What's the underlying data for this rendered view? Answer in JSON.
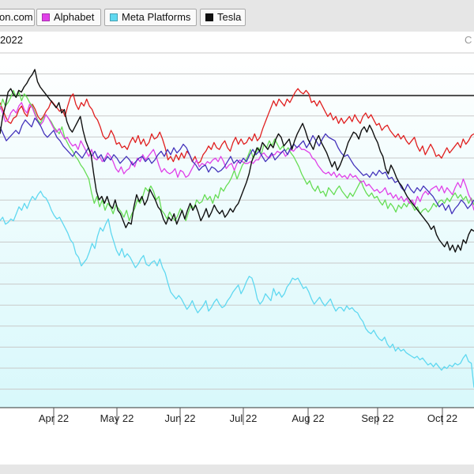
{
  "legend": [
    {
      "key": "amazon",
      "label": "on.com",
      "color": "#e01f1f"
    },
    {
      "key": "alphabet",
      "label": "Alphabet",
      "color": "#e040e8"
    },
    {
      "key": "meta",
      "label": "Meta Platforms",
      "color": "#5fd8f0"
    },
    {
      "key": "tesla",
      "label": "Tesla",
      "color": "#111111"
    }
  ],
  "header": {
    "title_partial": "2022",
    "corner_partial": "C"
  },
  "chart_data": {
    "type": "line",
    "x_ticks": [
      "Apr 22",
      "May 22",
      "Jun 22",
      "Jul 22",
      "Aug 22",
      "Sep 22",
      "Oct 22"
    ],
    "grid": true,
    "colors": {
      "amazon": "#e01f1f",
      "alphabet": "#e040e8",
      "meta": "#5fd8f0",
      "tesla": "#111111",
      "green": "#66dd55",
      "purple": "#4433bb",
      "fill_top": "#ffffff",
      "fill_bottom": "#d8f8fb"
    },
    "series": [
      {
        "name": "on.com",
        "key": "amazon",
        "color": "#e01f1f",
        "values": [
          -4,
          -8,
          -12,
          -15,
          -16,
          -13,
          -12,
          -8,
          -6,
          -10,
          -12,
          -7,
          -5,
          -8,
          -12,
          -14,
          -12,
          -9,
          -7,
          -3,
          -5,
          -7,
          -9,
          -8,
          -12,
          -6,
          -1,
          1,
          -5,
          -8,
          -4,
          -6,
          -2,
          -6,
          -8,
          -12,
          -14,
          -18,
          -23,
          -25,
          -24,
          -20,
          -23,
          -28,
          -27,
          -30,
          -29,
          -31,
          -27,
          -24,
          -27,
          -23,
          -28,
          -25,
          -29,
          -27,
          -22,
          -25,
          -24,
          -21,
          -25,
          -30,
          -37,
          -35,
          -38,
          -34,
          -37,
          -33,
          -36,
          -32,
          -34,
          -38,
          -35,
          -39,
          -38,
          -34,
          -32,
          -29,
          -31,
          -27,
          -30,
          -31,
          -28,
          -26,
          -30,
          -32,
          -27,
          -24,
          -28,
          -25,
          -28,
          -27,
          -24,
          -26,
          -22,
          -26,
          -24,
          -19,
          -15,
          -11,
          -7,
          -3,
          -6,
          -2,
          -4,
          -6,
          -2,
          -4,
          -1,
          2,
          4,
          2,
          1,
          3,
          1,
          -4,
          -3,
          -6,
          -3,
          -6,
          -9,
          -12,
          -10,
          -14,
          -12,
          -16,
          -13,
          -16,
          -14,
          -12,
          -15,
          -11,
          -14,
          -16,
          -12,
          -10,
          -13,
          -11,
          -14,
          -17,
          -16,
          -20,
          -18,
          -17,
          -20,
          -22,
          -24,
          -22,
          -25,
          -23,
          -26,
          -28,
          -26,
          -24,
          -29,
          -32,
          -29,
          -34,
          -31,
          -28,
          -31,
          -35,
          -34,
          -36,
          -33,
          -30,
          -33,
          -31,
          -29,
          -27,
          -30,
          -25,
          -28,
          -26,
          -23,
          -22
        ]
      },
      {
        "name": "Alphabet",
        "key": "alphabet",
        "color": "#e040e8",
        "values": [
          -6,
          -10,
          -15,
          -14,
          -10,
          -8,
          -10,
          -6,
          -4,
          -8,
          -10,
          -5,
          -7,
          -11,
          -15,
          -17,
          -15,
          -11,
          -13,
          -16,
          -19,
          -21,
          -19,
          -22,
          -25,
          -24,
          -27,
          -29,
          -28,
          -31,
          -26,
          -29,
          -32,
          -35,
          -31,
          -36,
          -37,
          -35,
          -38,
          -36,
          -33,
          -35,
          -38,
          -42,
          -44,
          -41,
          -45,
          -43,
          -42,
          -38,
          -41,
          -36,
          -38,
          -34,
          -37,
          -35,
          -33,
          -31,
          -35,
          -40,
          -44,
          -42,
          -44,
          -45,
          -44,
          -42,
          -47,
          -43,
          -44,
          -47,
          -46,
          -43,
          -40,
          -37,
          -41,
          -39,
          -40,
          -38,
          -39,
          -37,
          -36,
          -38,
          -35,
          -38,
          -42,
          -40,
          -39,
          -43,
          -39,
          -37,
          -38,
          -39,
          -39,
          -38,
          -39,
          -37,
          -37,
          -34,
          -33,
          -35,
          -36,
          -34,
          -34,
          -32,
          -33,
          -32,
          -35,
          -33,
          -31,
          -32,
          -30,
          -29,
          -31,
          -31,
          -32,
          -33,
          -36,
          -37,
          -40,
          -42,
          -44,
          -45,
          -44,
          -46,
          -44,
          -47,
          -45,
          -47,
          -46,
          -48,
          -45,
          -47,
          -46,
          -48,
          -50,
          -49,
          -52,
          -51,
          -53,
          -55,
          -54,
          -56,
          -55,
          -53,
          -57,
          -56,
          -59,
          -57,
          -60,
          -58,
          -61,
          -59,
          -62,
          -60,
          -63,
          -58,
          -61,
          -57,
          -55,
          -57,
          -54,
          -53,
          -52,
          -55,
          -52,
          -56,
          -53,
          -55,
          -57,
          -53,
          -50,
          -53,
          -48,
          -52,
          -57,
          -60,
          -66
        ]
      },
      {
        "name": "Meta Platforms",
        "key": "meta",
        "color": "#5fd8f0",
        "values": [
          -72,
          -70,
          -74,
          -73,
          -71,
          -72,
          -68,
          -64,
          -66,
          -62,
          -65,
          -61,
          -58,
          -60,
          -57,
          -55,
          -58,
          -59,
          -62,
          -66,
          -69,
          -71,
          -70,
          -73,
          -76,
          -79,
          -83,
          -85,
          -91,
          -93,
          -98,
          -96,
          -94,
          -90,
          -85,
          -88,
          -81,
          -76,
          -78,
          -74,
          -71,
          -79,
          -84,
          -89,
          -92,
          -88,
          -93,
          -91,
          -93,
          -96,
          -99,
          -97,
          -94,
          -92,
          -97,
          -98,
          -96,
          -95,
          -98,
          -94,
          -99,
          -102,
          -108,
          -113,
          -115,
          -117,
          -115,
          -117,
          -120,
          -123,
          -121,
          -118,
          -122,
          -125,
          -123,
          -121,
          -118,
          -124,
          -122,
          -119,
          -117,
          -120,
          -122,
          -121,
          -118,
          -116,
          -113,
          -111,
          -109,
          -114,
          -111,
          -107,
          -104,
          -105,
          -110,
          -117,
          -120,
          -118,
          -114,
          -116,
          -118,
          -111,
          -115,
          -113,
          -116,
          -114,
          -110,
          -108,
          -105,
          -106,
          -105,
          -108,
          -111,
          -110,
          -113,
          -117,
          -120,
          -118,
          -116,
          -119,
          -121,
          -119,
          -117,
          -121,
          -124,
          -122,
          -122,
          -124,
          -121,
          -123,
          -122,
          -124,
          -125,
          -128,
          -130,
          -134,
          -136,
          -137,
          -135,
          -138,
          -140,
          -141,
          -139,
          -143,
          -145,
          -143,
          -147,
          -145,
          -147,
          -146,
          -148,
          -149,
          -150,
          -151,
          -150,
          -152,
          -151,
          -153,
          -155,
          -154,
          -156,
          -154,
          -156,
          -158,
          -156,
          -157,
          -155,
          -156,
          -154,
          -155,
          -154,
          -151,
          -149,
          -153,
          -154,
          -168
        ]
      },
      {
        "name": "Tesla",
        "key": "tesla",
        "color": "#111111",
        "values": [
          -22,
          -12,
          -6,
          2,
          4,
          1,
          -1,
          3,
          2,
          5,
          7,
          10,
          12,
          15,
          8,
          5,
          3,
          1,
          -1,
          -3,
          -5,
          -7,
          -4,
          -10,
          -8,
          -15,
          -19,
          -21,
          -18,
          -15,
          -12,
          -20,
          -26,
          -30,
          -34,
          -45,
          -55,
          -60,
          -58,
          -62,
          -58,
          -63,
          -65,
          -60,
          -66,
          -68,
          -72,
          -76,
          -73,
          -74,
          -64,
          -57,
          -61,
          -58,
          -63,
          -60,
          -54,
          -57,
          -60,
          -64,
          -66,
          -71,
          -74,
          -70,
          -72,
          -68,
          -74,
          -70,
          -66,
          -71,
          -66,
          -62,
          -66,
          -63,
          -67,
          -72,
          -69,
          -65,
          -70,
          -67,
          -63,
          -66,
          -68,
          -66,
          -70,
          -68,
          -65,
          -67,
          -64,
          -62,
          -58,
          -54,
          -50,
          -45,
          -38,
          -34,
          -30,
          -32,
          -27,
          -29,
          -31,
          -28,
          -30,
          -25,
          -22,
          -24,
          -29,
          -27,
          -25,
          -31,
          -26,
          -22,
          -19,
          -16,
          -20,
          -25,
          -28,
          -31,
          -26,
          -23,
          -27,
          -30,
          -33,
          -37,
          -41,
          -38,
          -43,
          -40,
          -36,
          -32,
          -27,
          -24,
          -21,
          -22,
          -25,
          -20,
          -18,
          -21,
          -17,
          -20,
          -24,
          -27,
          -32,
          -35,
          -42,
          -45,
          -40,
          -43,
          -47,
          -50,
          -52,
          -55,
          -58,
          -60,
          -62,
          -64,
          -66,
          -68,
          -70,
          -72,
          -74,
          -77,
          -75,
          -80,
          -83,
          -85,
          -87,
          -84,
          -89,
          -86,
          -90,
          -86,
          -89,
          -83,
          -85,
          -80,
          -77,
          -78
        ]
      },
      {
        "key": "green",
        "color": "#66dd55",
        "values": [
          -8,
          -2,
          -6,
          -4,
          -1,
          3,
          -1,
          2,
          -3,
          1,
          -1,
          -4,
          -6,
          -10,
          -14,
          -16,
          -13,
          -11,
          -13,
          -15,
          -18,
          -20,
          -22,
          -18,
          -24,
          -27,
          -30,
          -32,
          -35,
          -37,
          -40,
          -42,
          -45,
          -48,
          -56,
          -62,
          -58,
          -64,
          -60,
          -66,
          -62,
          -64,
          -68,
          -63,
          -65,
          -67,
          -70,
          -66,
          -72,
          -68,
          -65,
          -60,
          -62,
          -58,
          -53,
          -55,
          -52,
          -55,
          -60,
          -58,
          -66,
          -68,
          -71,
          -67,
          -70,
          -72,
          -69,
          -65,
          -68,
          -72,
          -67,
          -63,
          -65,
          -60,
          -62,
          -61,
          -57,
          -60,
          -58,
          -62,
          -57,
          -59,
          -53,
          -55,
          -52,
          -50,
          -47,
          -43,
          -48,
          -44,
          -40,
          -38,
          -35,
          -31,
          -36,
          -33,
          -30,
          -34,
          -28,
          -30,
          -26,
          -29,
          -25,
          -28,
          -31,
          -29,
          -32,
          -30,
          -33,
          -35,
          -38,
          -41,
          -45,
          -48,
          -51,
          -49,
          -53,
          -55,
          -52,
          -56,
          -55,
          -58,
          -53,
          -55,
          -57,
          -54,
          -52,
          -55,
          -57,
          -59,
          -56,
          -58,
          -55,
          -52,
          -49,
          -53,
          -56,
          -58,
          -56,
          -59,
          -58,
          -61,
          -63,
          -60,
          -65,
          -62,
          -64,
          -67,
          -63,
          -65,
          -62,
          -64,
          -61,
          -63,
          -66,
          -64,
          -68,
          -66,
          -65,
          -67,
          -65,
          -62,
          -64,
          -61,
          -60,
          -62,
          -59,
          -61,
          -58,
          -56,
          -59,
          -57,
          -60,
          -58,
          -62,
          -59,
          -63
        ]
      },
      {
        "key": "purple",
        "color": "#4433bb",
        "values": [
          -18,
          -22,
          -26,
          -24,
          -22,
          -20,
          -22,
          -17,
          -14,
          -16,
          -18,
          -13,
          -15,
          -18,
          -22,
          -24,
          -22,
          -20,
          -24,
          -26,
          -29,
          -31,
          -33,
          -35,
          -32,
          -34,
          -36,
          -33,
          -30,
          -35,
          -32,
          -36,
          -34,
          -38,
          -35,
          -37,
          -34,
          -36,
          -39,
          -37,
          -35,
          -37,
          -40,
          -38,
          -36,
          -35,
          -38,
          -36,
          -39,
          -37,
          -34,
          -32,
          -35,
          -31,
          -34,
          -30,
          -33,
          -31,
          -28,
          -30,
          -34,
          -38,
          -40,
          -43,
          -41,
          -40,
          -44,
          -41,
          -42,
          -44,
          -43,
          -41,
          -38,
          -35,
          -39,
          -37,
          -39,
          -36,
          -38,
          -34,
          -31,
          -34,
          -32,
          -35,
          -38,
          -36,
          -33,
          -37,
          -35,
          -33,
          -31,
          -34,
          -30,
          -28,
          -30,
          -28,
          -26,
          -30,
          -27,
          -23,
          -26,
          -29,
          -25,
          -22,
          -24,
          -25,
          -26,
          -30,
          -33,
          -35,
          -34,
          -37,
          -40,
          -42,
          -44,
          -46,
          -45,
          -47,
          -44,
          -46,
          -43,
          -45,
          -44,
          -48,
          -47,
          -50,
          -49,
          -53,
          -55,
          -51,
          -54,
          -56,
          -53,
          -55,
          -52,
          -54,
          -56,
          -58,
          -61,
          -64,
          -62,
          -66,
          -63,
          -68,
          -65,
          -63,
          -60,
          -62,
          -65,
          -63,
          -60
        ]
      }
    ]
  }
}
